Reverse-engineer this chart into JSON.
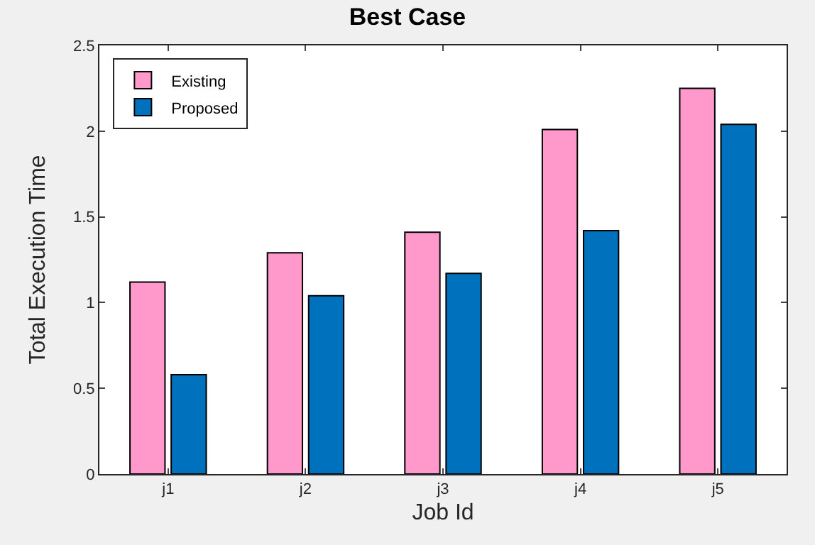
{
  "chart_data": {
    "type": "bar",
    "title": "Best Case",
    "xlabel": "Job Id",
    "ylabel": "Total Execution Time",
    "categories": [
      "j1",
      "j2",
      "j3",
      "j4",
      "j5"
    ],
    "series": [
      {
        "name": "Existing",
        "color": "#ff99cc",
        "values": [
          1.12,
          1.29,
          1.41,
          2.01,
          2.25
        ]
      },
      {
        "name": "Proposed",
        "color": "#0072bd",
        "values": [
          0.58,
          1.04,
          1.17,
          1.42,
          2.04
        ]
      }
    ],
    "ylim": [
      0,
      2.5
    ],
    "yticks": [
      0,
      0.5,
      1,
      1.5,
      2,
      2.5
    ],
    "legend": "top left"
  }
}
